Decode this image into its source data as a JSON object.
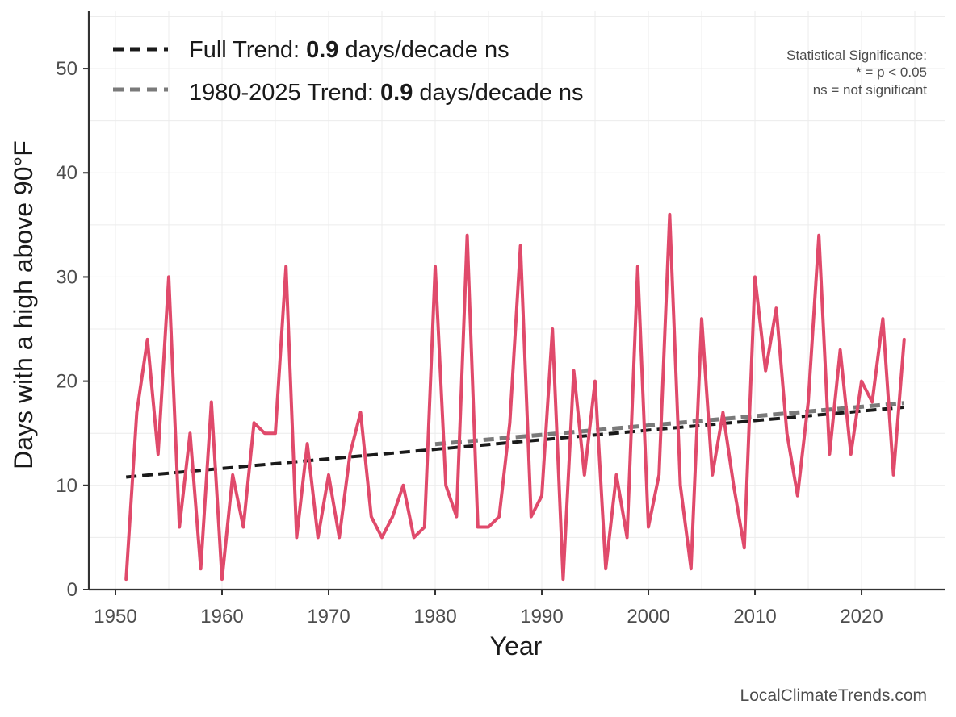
{
  "chart_data": {
    "type": "line",
    "xlabel": "Year",
    "ylabel": "Days with a high above 90°F",
    "xlim": [
      1947.5,
      2027.8
    ],
    "ylim": [
      0,
      55.5
    ],
    "x_ticks": [
      1950,
      1960,
      1970,
      1980,
      1990,
      2000,
      2010,
      2020
    ],
    "y_ticks": [
      0,
      10,
      20,
      30,
      40,
      50
    ],
    "grid": true,
    "series": [
      {
        "name": "Days with a high above 90°F",
        "color": "#e04a6b",
        "x": [
          1951,
          1952,
          1953,
          1954,
          1955,
          1956,
          1957,
          1958,
          1959,
          1960,
          1961,
          1962,
          1963,
          1964,
          1965,
          1966,
          1967,
          1968,
          1969,
          1970,
          1971,
          1972,
          1973,
          1974,
          1975,
          1976,
          1977,
          1978,
          1979,
          1980,
          1981,
          1982,
          1983,
          1984,
          1985,
          1986,
          1987,
          1988,
          1989,
          1990,
          1991,
          1992,
          1993,
          1994,
          1995,
          1996,
          1997,
          1998,
          1999,
          2000,
          2001,
          2002,
          2003,
          2004,
          2005,
          2006,
          2007,
          2008,
          2009,
          2010,
          2011,
          2012,
          2013,
          2014,
          2015,
          2016,
          2017,
          2018,
          2019,
          2020,
          2021,
          2022,
          2023,
          2024
        ],
        "values": [
          1,
          17,
          24,
          13,
          30,
          6,
          15,
          2,
          18,
          1,
          11,
          6,
          16,
          15,
          15,
          31,
          5,
          14,
          5,
          11,
          5,
          13,
          17,
          7,
          5,
          7,
          10,
          5,
          6,
          31,
          10,
          7,
          34,
          6,
          6,
          7,
          16,
          33,
          7,
          9,
          25,
          1,
          21,
          11,
          20,
          2,
          11,
          5,
          31,
          6,
          11,
          36,
          10,
          2,
          26,
          11,
          17,
          10,
          4,
          30,
          21,
          27,
          15,
          9,
          18,
          34,
          13,
          23,
          13,
          20,
          18,
          26,
          11,
          24
        ]
      }
    ],
    "trends": [
      {
        "name": "Full Trend",
        "color": "#1a1a1a",
        "x": [
          1951,
          2024
        ],
        "y": [
          10.8,
          17.5
        ]
      },
      {
        "name": "1980-2025 Trend",
        "color": "#7a7a7a",
        "x": [
          1980,
          2024
        ],
        "y": [
          13.95,
          17.9
        ]
      }
    ]
  },
  "legend": {
    "full_prefix": "Full Trend: ",
    "full_value": "0.9",
    "full_suffix": " days/decade ns",
    "recent_prefix": "1980-2025 Trend: ",
    "recent_value": "0.9",
    "recent_suffix": " days/decade ns"
  },
  "significance": {
    "title": "Statistical Significance:",
    "line1": "* = p < 0.05",
    "line2": "ns = not significant"
  },
  "credit": "LocalClimateTrends.com"
}
